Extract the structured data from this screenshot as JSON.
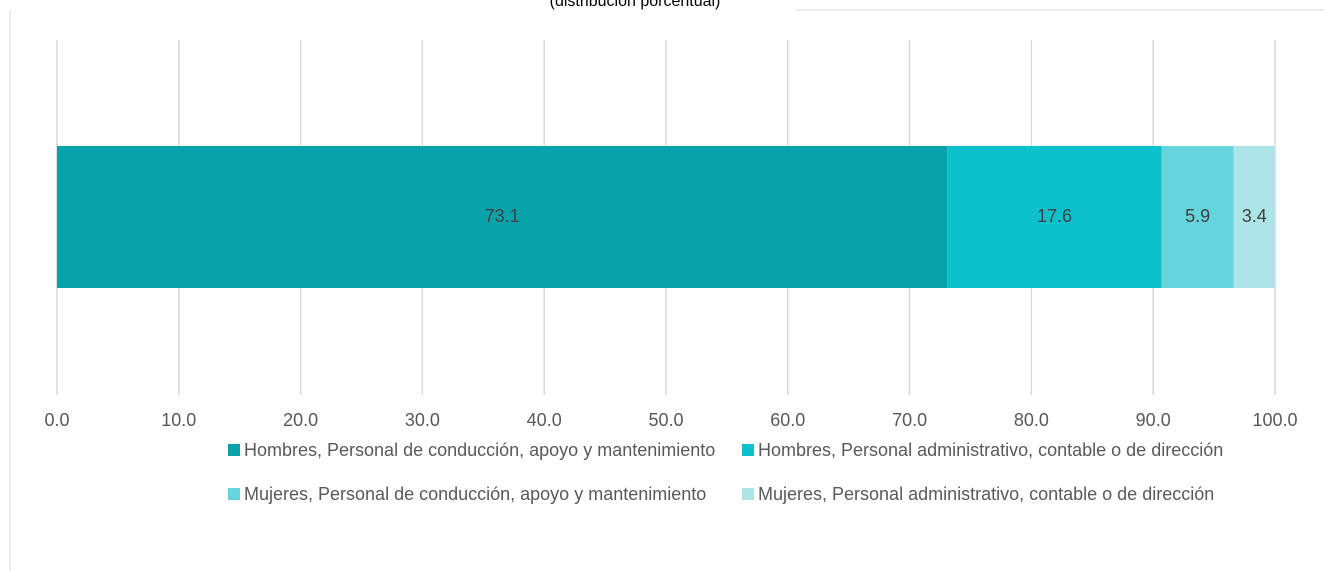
{
  "chart_data": {
    "type": "stacked_barh",
    "subtitle": "(distribución porcentual)",
    "categories": [
      null
    ],
    "series": [
      {
        "name": "Hombres, Personal de conducción, apoyo y mantenimiento",
        "color": "#07a2aa",
        "values": [
          73.1
        ]
      },
      {
        "name": "Hombres, Personal administrativo, contable o de dirección",
        "color": "#0cc1cc",
        "values": [
          17.6
        ]
      },
      {
        "name": "Mujeres, Personal de conducción, apoyo y mantenimiento",
        "color": "#66d4dc",
        "values": [
          5.9
        ]
      },
      {
        "name": "Mujeres, Personal administrativo, contable o de dirección",
        "color": "#ade4e8",
        "values": [
          3.4
        ]
      }
    ],
    "xlim": [
      0,
      100
    ],
    "xticks": [
      {
        "value": 0,
        "label": "0.0"
      },
      {
        "value": 10,
        "label": "10.0"
      },
      {
        "value": 20,
        "label": "20.0"
      },
      {
        "value": 30,
        "label": "30.0"
      },
      {
        "value": 40,
        "label": "40.0"
      },
      {
        "value": 50,
        "label": "50.0"
      },
      {
        "value": 60,
        "label": "60.0"
      },
      {
        "value": 70,
        "label": "70.0"
      },
      {
        "value": 80,
        "label": "80.0"
      },
      {
        "value": 90,
        "label": "90.0"
      },
      {
        "value": 100,
        "label": "100.0"
      }
    ],
    "grid": true,
    "legend": "bottom"
  }
}
